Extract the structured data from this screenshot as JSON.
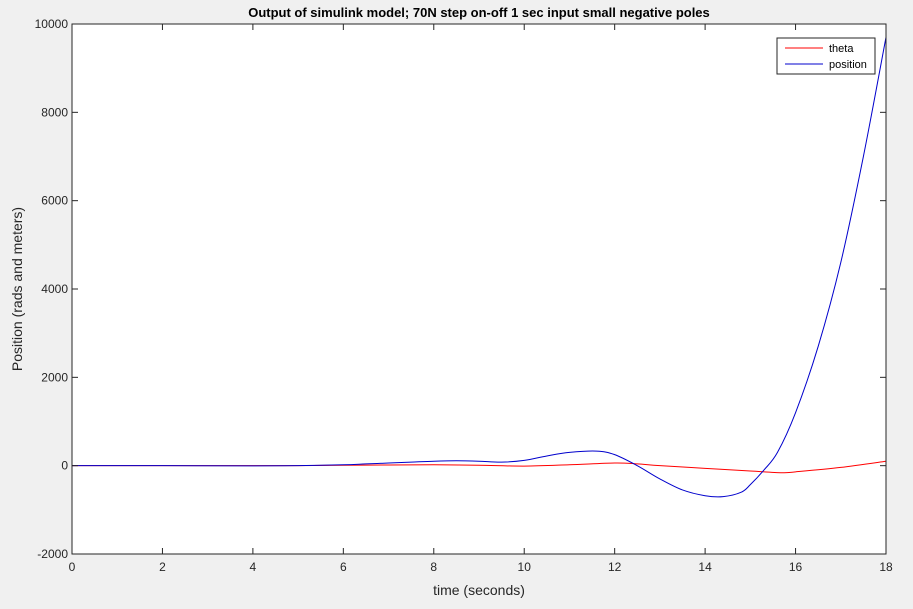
{
  "chart_data": {
    "type": "line",
    "title": "Output of simulink model; 70N step on-off 1 sec input small negative poles",
    "xlabel": "time (seconds)",
    "ylabel": "Position (rads and meters)",
    "xlim": [
      0,
      18
    ],
    "ylim": [
      -2000,
      10000
    ],
    "x_ticks": [
      0,
      2,
      4,
      6,
      8,
      10,
      12,
      14,
      16,
      18
    ],
    "y_ticks": [
      -2000,
      0,
      2000,
      4000,
      6000,
      8000,
      10000
    ],
    "grid": false,
    "legend_position": "top-right",
    "series": [
      {
        "name": "theta",
        "color": "#ff0000",
        "x": [
          0,
          2,
          4,
          5,
          6,
          7,
          8,
          9,
          10,
          11,
          12,
          12.5,
          13,
          14,
          15,
          15.7,
          16,
          17,
          18
        ],
        "y": [
          0,
          0,
          0,
          2,
          8,
          15,
          20,
          10,
          -10,
          20,
          60,
          40,
          0,
          -60,
          -120,
          -160,
          -140,
          -40,
          100
        ]
      },
      {
        "name": "position",
        "color": "#0000cc",
        "x": [
          0,
          2,
          4,
          5,
          6,
          6.5,
          7,
          7.5,
          8,
          8.5,
          9,
          9.5,
          10,
          10.5,
          11,
          11.6,
          12,
          12.5,
          13,
          13.5,
          14,
          14.4,
          14.8,
          15,
          15.3,
          15.6,
          16,
          16.5,
          17,
          17.5,
          18
        ],
        "y": [
          0,
          0,
          -5,
          0,
          20,
          40,
          60,
          80,
          100,
          110,
          100,
          80,
          120,
          220,
          300,
          330,
          250,
          0,
          -300,
          -550,
          -680,
          -700,
          -600,
          -430,
          -100,
          300,
          1200,
          2700,
          4600,
          7000,
          9700
        ]
      }
    ]
  }
}
